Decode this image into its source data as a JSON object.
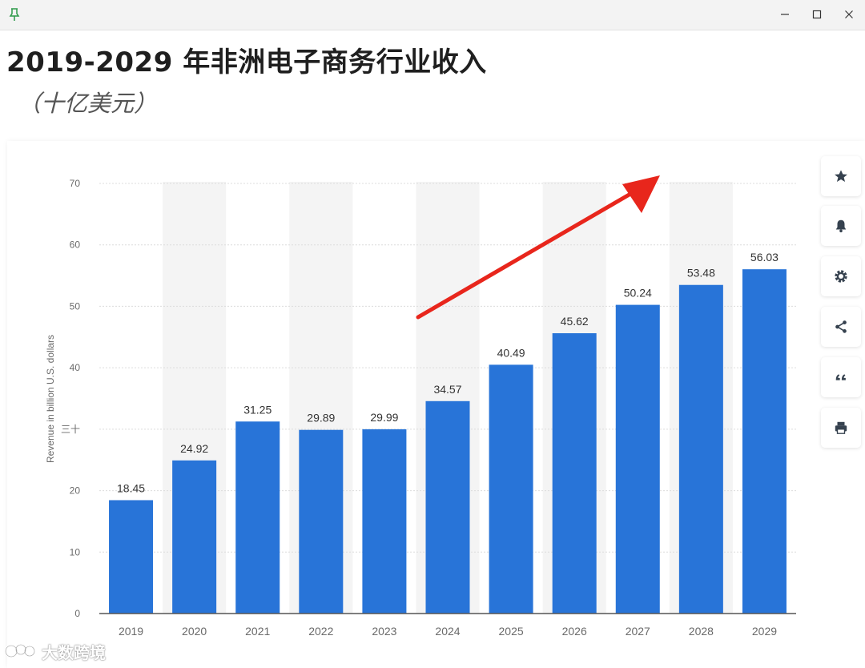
{
  "window": {
    "icons": {
      "pin": "pin-icon",
      "minimize": "minimize-icon",
      "maximize": "maximize-icon",
      "close": "close-icon"
    }
  },
  "page": {
    "title": "2019-2029 年非洲电子商务行业收入",
    "subtitle": "（十亿美元）"
  },
  "toolbar": {
    "icons": [
      "star-icon",
      "bell-icon",
      "gear-icon",
      "share-icon",
      "quote-icon",
      "print-icon"
    ]
  },
  "watermark": {
    "text": "大数跨境"
  },
  "colors": {
    "bar": "#2874d8",
    "arrow": "#e8261c",
    "grid": "#dcdcdc",
    "band": "#f4f4f4",
    "axis_text": "#6a6a6a",
    "label_text": "#333333"
  },
  "chart_data": {
    "type": "bar",
    "categories": [
      "2019",
      "2020",
      "2021",
      "2022",
      "2023",
      "2024",
      "2025",
      "2026",
      "2027",
      "2028",
      "2029"
    ],
    "values": [
      18.45,
      24.92,
      31.25,
      29.89,
      29.99,
      34.57,
      40.49,
      45.62,
      50.24,
      53.48,
      56.03
    ],
    "data_labels": [
      "18.45",
      "24.92",
      "31.25",
      "29.89",
      "29.99",
      "34.57",
      "40.49",
      "45.62",
      "50.24",
      "53.48",
      "56.03"
    ],
    "ylabel": "Revenue in billion U.S. dollars",
    "yticks": [
      0,
      10,
      20,
      "三十",
      40,
      50,
      60,
      70
    ],
    "ylim": [
      0,
      70
    ],
    "grid": true,
    "legend": "none"
  }
}
